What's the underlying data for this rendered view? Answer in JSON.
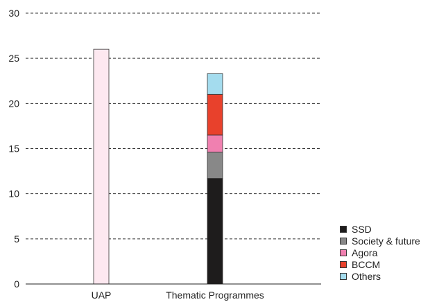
{
  "chart_data": {
    "type": "bar",
    "stacked": true,
    "categories": [
      "UAP",
      "Thematic Programmes"
    ],
    "ylim": [
      0,
      30
    ],
    "yticks": [
      0,
      5,
      10,
      15,
      20,
      25,
      30
    ],
    "grid": true,
    "legend_position": "bottom-right",
    "series": [
      {
        "name": "UAP",
        "color": "#fde8f0",
        "values": [
          26,
          0
        ],
        "in_legend": false
      },
      {
        "name": "SSD",
        "color": "#1e1c1c",
        "values": [
          0,
          11.7
        ],
        "in_legend": true
      },
      {
        "name": "Society & future",
        "color": "#888888",
        "values": [
          0,
          2.9
        ],
        "in_legend": true
      },
      {
        "name": "Agora",
        "color": "#f080b0",
        "values": [
          0,
          1.9
        ],
        "in_legend": true
      },
      {
        "name": "BCCM",
        "color": "#e8412c",
        "values": [
          0,
          4.5
        ],
        "in_legend": true
      },
      {
        "name": "Others",
        "color": "#a4dcee",
        "values": [
          0,
          2.3
        ],
        "in_legend": true
      }
    ]
  }
}
